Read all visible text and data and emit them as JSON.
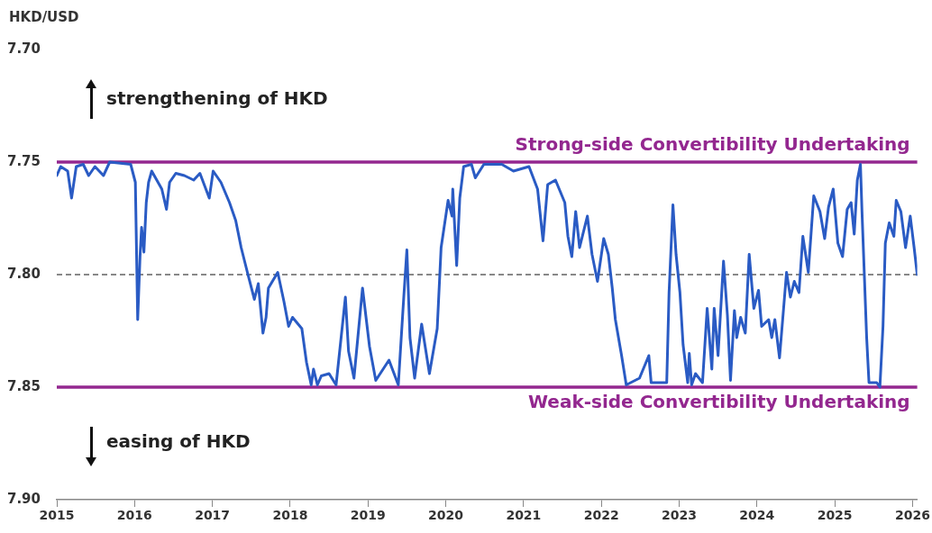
{
  "chart_data": {
    "type": "line",
    "ylabel": "HKD/USD",
    "annotations": [
      "strengthening of HKD",
      "easing of HKD"
    ],
    "xlim": [
      2015,
      2026.06
    ],
    "xticks": [
      2015,
      2016,
      2017,
      2018,
      2019,
      2020,
      2021,
      2022,
      2023,
      2024,
      2025,
      2026
    ],
    "ylim": [
      7.9,
      7.7
    ],
    "yticks": [
      {
        "value": 7.7,
        "label": "7.70"
      },
      {
        "value": 7.75,
        "label": "7.75"
      },
      {
        "value": 7.8,
        "label": "7.80"
      },
      {
        "value": 7.85,
        "label": "7.85"
      },
      {
        "value": 7.9,
        "label": "7.90"
      }
    ],
    "grid": false,
    "legend": false,
    "marker": "none",
    "line_style": "solid",
    "ref_lines": [
      {
        "axis": "y",
        "value": 7.75,
        "label": "Strong-side Convertibility Undertaking",
        "color": "#93278f"
      },
      {
        "axis": "y",
        "value": 7.8,
        "color": "#888888",
        "line_style": "dashed"
      },
      {
        "axis": "y",
        "value": 7.85,
        "label": "Weak-side Convertibility Undertaking",
        "color": "#93278f"
      }
    ],
    "series": [
      {
        "color": "#2a5bc4",
        "x": [
          2015.0,
          2015.05,
          2015.14,
          2015.19,
          2015.25,
          2015.34,
          2015.41,
          2015.49,
          2015.6,
          2015.68,
          2015.95,
          2016.01,
          2016.04,
          2016.07,
          2016.09,
          2016.12,
          2016.15,
          2016.18,
          2016.22,
          2016.35,
          2016.41,
          2016.45,
          2016.53,
          2016.64,
          2016.76,
          2016.84,
          2016.96,
          2017.01,
          2017.11,
          2017.22,
          2017.3,
          2017.37,
          2017.45,
          2017.54,
          2017.59,
          2017.65,
          2017.69,
          2017.72,
          2017.84,
          2017.92,
          2017.98,
          2018.03,
          2018.15,
          2018.21,
          2018.27,
          2018.3,
          2018.35,
          2018.4,
          2018.5,
          2018.59,
          2018.71,
          2018.75,
          2018.82,
          2018.93,
          2019.02,
          2019.1,
          2019.27,
          2019.39,
          2019.46,
          2019.5,
          2019.54,
          2019.6,
          2019.69,
          2019.79,
          2019.89,
          2019.94,
          2020.03,
          2020.08,
          2020.09,
          2020.14,
          2020.18,
          2020.23,
          2020.33,
          2020.38,
          2020.49,
          2020.72,
          2020.87,
          2021.07,
          2021.18,
          2021.25,
          2021.31,
          2021.41,
          2021.53,
          2021.57,
          2021.62,
          2021.67,
          2021.72,
          2021.82,
          2021.88,
          2021.95,
          2022.03,
          2022.09,
          2022.14,
          2022.18,
          2022.26,
          2022.32,
          2022.49,
          2022.61,
          2022.64,
          2022.84,
          2022.87,
          2022.92,
          2022.96,
          2023.01,
          2023.05,
          2023.11,
          2023.13,
          2023.16,
          2023.21,
          2023.3,
          2023.36,
          2023.42,
          2023.45,
          2023.5,
          2023.57,
          2023.62,
          2023.66,
          2023.71,
          2023.74,
          2023.79,
          2023.85,
          2023.9,
          2023.96,
          2024.02,
          2024.06,
          2024.15,
          2024.19,
          2024.23,
          2024.29,
          2024.34,
          2024.38,
          2024.43,
          2024.48,
          2024.54,
          2024.59,
          2024.66,
          2024.73,
          2024.81,
          2024.87,
          2024.92,
          2024.98,
          2025.04,
          2025.1,
          2025.16,
          2025.21,
          2025.25,
          2025.29,
          2025.33,
          2025.35,
          2025.41,
          2025.44,
          2025.54,
          2025.58,
          2025.62,
          2025.65,
          2025.7,
          2025.76,
          2025.79,
          2025.85,
          2025.91,
          2025.97,
          2026.02,
          2026.06
        ],
        "values": [
          7.756,
          7.752,
          7.754,
          7.766,
          7.752,
          7.751,
          7.756,
          7.752,
          7.756,
          7.75,
          7.751,
          7.759,
          7.82,
          7.792,
          7.779,
          7.79,
          7.768,
          7.759,
          7.754,
          7.762,
          7.771,
          7.759,
          7.755,
          7.756,
          7.758,
          7.755,
          7.766,
          7.754,
          7.759,
          7.768,
          7.776,
          7.788,
          7.799,
          7.811,
          7.804,
          7.826,
          7.819,
          7.806,
          7.799,
          7.812,
          7.823,
          7.819,
          7.824,
          7.839,
          7.849,
          7.842,
          7.849,
          7.845,
          7.844,
          7.849,
          7.81,
          7.834,
          7.846,
          7.806,
          7.832,
          7.847,
          7.838,
          7.849,
          7.81,
          7.789,
          7.828,
          7.846,
          7.822,
          7.844,
          7.824,
          7.788,
          7.767,
          7.774,
          7.762,
          7.796,
          7.766,
          7.752,
          7.751,
          7.757,
          7.751,
          7.751,
          7.754,
          7.752,
          7.762,
          7.785,
          7.76,
          7.758,
          7.768,
          7.783,
          7.792,
          7.772,
          7.788,
          7.774,
          7.791,
          7.803,
          7.784,
          7.791,
          7.806,
          7.82,
          7.836,
          7.849,
          7.846,
          7.836,
          7.848,
          7.848,
          7.808,
          7.769,
          7.791,
          7.808,
          7.831,
          7.848,
          7.835,
          7.849,
          7.844,
          7.848,
          7.815,
          7.842,
          7.815,
          7.836,
          7.794,
          7.818,
          7.847,
          7.816,
          7.828,
          7.819,
          7.826,
          7.791,
          7.815,
          7.807,
          7.823,
          7.82,
          7.828,
          7.82,
          7.837,
          7.816,
          7.799,
          7.81,
          7.803,
          7.808,
          7.783,
          7.799,
          7.765,
          7.772,
          7.784,
          7.77,
          7.762,
          7.786,
          7.792,
          7.771,
          7.768,
          7.782,
          7.758,
          7.751,
          7.772,
          7.828,
          7.848,
          7.848,
          7.85,
          7.823,
          7.786,
          7.777,
          7.783,
          7.767,
          7.772,
          7.788,
          7.774,
          7.788,
          7.8
        ]
      }
    ]
  }
}
